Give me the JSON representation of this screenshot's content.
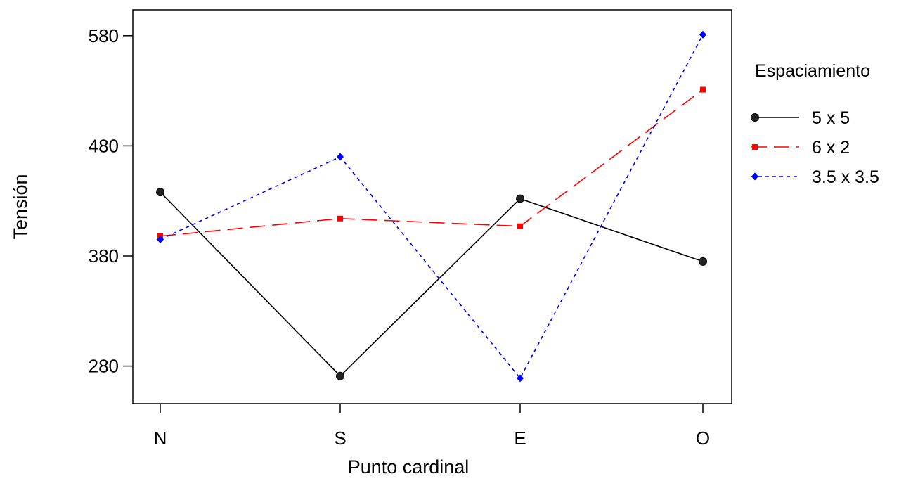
{
  "chart_data": {
    "type": "line",
    "xlabel": "Punto cardinal",
    "ylabel": "Tensión",
    "categories": [
      "N",
      "S",
      "E",
      "O"
    ],
    "yticks": [
      280,
      380,
      480,
      580
    ],
    "ylim": [
      250,
      600
    ],
    "legend_title": "Espaciamiento",
    "legend_position": "right",
    "grid": false,
    "series": [
      {
        "name": "5 x 5",
        "values": [
          438,
          271,
          432,
          375
        ],
        "color": "#000000",
        "dash": "solid",
        "marker": "circle"
      },
      {
        "name": "6 x 2",
        "values": [
          398,
          414,
          407,
          531
        ],
        "color": "#ff0000",
        "dash": "dashed",
        "marker": "square"
      },
      {
        "name": "3.5 x 3.5",
        "values": [
          395,
          470,
          269,
          581
        ],
        "color": "#0000ff",
        "dash": "dotted",
        "marker": "diamond"
      }
    ]
  }
}
